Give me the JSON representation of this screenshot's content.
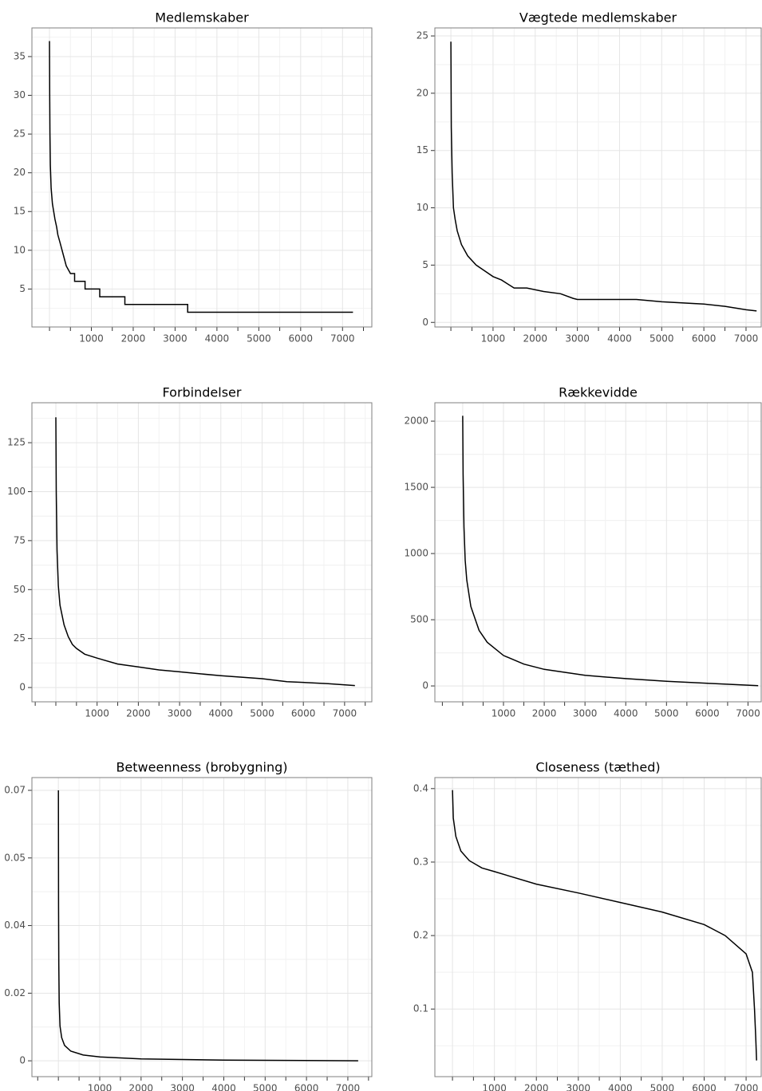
{
  "chart_data": [
    {
      "type": "line",
      "title": "Medlemskaber",
      "color": "#000000",
      "grid": true,
      "x": [
        0,
        5,
        10,
        20,
        40,
        70,
        100,
        130,
        170,
        200,
        250,
        300,
        350,
        400,
        500,
        600,
        600,
        850,
        850,
        1200,
        1200,
        1800,
        1800,
        3300,
        3300,
        7250
      ],
      "values": [
        37,
        30,
        25,
        21,
        18,
        16,
        15,
        14,
        13,
        12,
        11,
        10,
        9,
        8,
        7,
        7,
        6,
        6,
        5,
        5,
        4,
        4,
        3,
        3,
        2,
        2
      ],
      "xlim": [
        -420,
        7700
      ],
      "ylim": [
        0.1,
        38.7
      ],
      "xticks": [
        1000,
        2000,
        3000,
        4000,
        5000,
        6000,
        7000
      ],
      "yticks": [
        5,
        10,
        15,
        20,
        25,
        30,
        35
      ]
    },
    {
      "type": "line",
      "title": "Vægtede medlemskaber",
      "color": "#000000",
      "grid": true,
      "x": [
        0,
        10,
        30,
        60,
        100,
        150,
        250,
        400,
        600,
        800,
        1000,
        1200,
        1500,
        1800,
        2200,
        2600,
        2900,
        3000,
        4400,
        5000,
        6000,
        6500,
        7000,
        7250
      ],
      "values": [
        24.5,
        17,
        13,
        10,
        9,
        8,
        6.8,
        5.8,
        5,
        4.5,
        4,
        3.7,
        3,
        3,
        2.7,
        2.5,
        2.1,
        2,
        2,
        1.8,
        1.6,
        1.4,
        1.1,
        1
      ],
      "xlim": [
        -380,
        7360
      ],
      "ylim": [
        -0.4,
        25.7
      ],
      "xticks": [
        1000,
        2000,
        3000,
        4000,
        5000,
        6000,
        7000
      ],
      "yticks": [
        0,
        5,
        10,
        15,
        20,
        25
      ]
    },
    {
      "type": "line",
      "title": "Forbindelser",
      "color": "#000000",
      "grid": true,
      "x": [
        0,
        10,
        30,
        60,
        100,
        200,
        300,
        400,
        500,
        700,
        1000,
        1500,
        2000,
        2500,
        3000,
        3500,
        4000,
        5000,
        5600,
        6600,
        7250
      ],
      "values": [
        138,
        100,
        70,
        52,
        42,
        32,
        26,
        22,
        20,
        17,
        15,
        12,
        10.5,
        9,
        8,
        7,
        6,
        4.5,
        3,
        2,
        1
      ],
      "xlim": [
        -580,
        7660
      ],
      "ylim": [
        -7.3,
        145.4
      ],
      "xticks": [
        1000,
        2000,
        3000,
        4000,
        5000,
        6000,
        7000
      ],
      "yticks": [
        0,
        25,
        50,
        75,
        100,
        125
      ]
    },
    {
      "type": "line",
      "title": "Rækkevidde",
      "color": "#000000",
      "grid": true,
      "x": [
        0,
        10,
        30,
        60,
        100,
        200,
        400,
        600,
        1000,
        1500,
        2000,
        3000,
        4000,
        5000,
        6000,
        7250
      ],
      "values": [
        2040,
        1600,
        1200,
        950,
        800,
        600,
        420,
        330,
        230,
        165,
        125,
        80,
        55,
        35,
        20,
        2
      ],
      "xlim": [
        -684,
        7324
      ],
      "ylim": [
        -120,
        2139
      ],
      "xticks": [
        1000,
        2000,
        3000,
        4000,
        5000,
        6000,
        7000
      ],
      "yticks": [
        0,
        500,
        1000,
        1500,
        2000
      ]
    },
    {
      "type": "line",
      "title": "Betweenness (brobygning)",
      "color": "#000000",
      "grid": true,
      "x": [
        0,
        5,
        10,
        20,
        40,
        80,
        150,
        300,
        600,
        1000,
        2000,
        4000,
        7250
      ],
      "values": [
        0.07,
        0.04,
        0.025,
        0.015,
        0.009,
        0.006,
        0.004,
        0.0025,
        0.0015,
        0.001,
        0.0005,
        0.0002,
        0
      ],
      "xlim": [
        -640,
        7580
      ],
      "ylim": [
        -0.0041,
        0.0733
      ],
      "xticks": [
        1000,
        2000,
        3000,
        4000,
        5000,
        6000,
        7000
      ],
      "yticks": [
        0,
        {
          "value": 0.0175,
          "label": "0.02"
        },
        {
          "value": 0.035,
          "label": "0.04"
        },
        {
          "value": 0.0525,
          "label": "0.05"
        },
        {
          "value": 0.07,
          "label": "0.07"
        }
      ]
    },
    {
      "type": "line",
      "title": "Closeness (tæthed)",
      "color": "#000000",
      "grid": true,
      "x": [
        0,
        20,
        80,
        200,
        400,
        700,
        1000,
        2000,
        3000,
        4000,
        5000,
        6000,
        6500,
        7000,
        7150,
        7200,
        7230,
        7250
      ],
      "values": [
        0.398,
        0.36,
        0.335,
        0.315,
        0.302,
        0.292,
        0.287,
        0.27,
        0.258,
        0.245,
        0.232,
        0.215,
        0.2,
        0.175,
        0.15,
        0.1,
        0.06,
        0.03
      ],
      "xlim": [
        -420,
        7360
      ],
      "ylim": [
        0.008,
        0.415
      ],
      "xticks": [
        1000,
        2000,
        3000,
        4000,
        5000,
        6000,
        7000
      ],
      "yticks": [
        0.1,
        0.2,
        0.3,
        0.4
      ]
    }
  ]
}
